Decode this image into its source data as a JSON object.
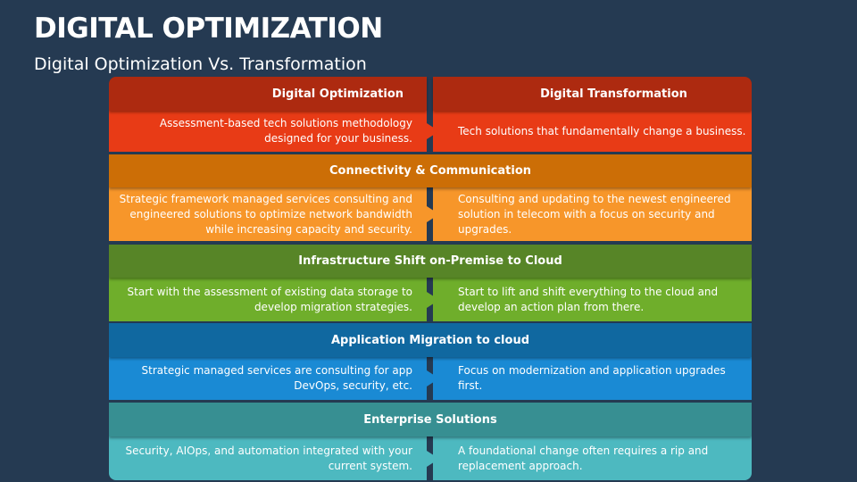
{
  "title": "DIGITAL OPTIMIZATION",
  "subtitle": "Digital Optimization Vs. Transformation",
  "columns": {
    "left": "Digital Optimization",
    "right": "Digital Transformation"
  },
  "rows": [
    {
      "heading": "",
      "left": "Assessment-based tech solutions methodology designed for your business.",
      "right": "Tech solutions that fundamentally change a business.",
      "header_color": "#ad2a10",
      "body_color": "#e83b16"
    },
    {
      "heading": "Connectivity & Communication",
      "left": "Strategic framework managed services consulting and engineered solutions to optimize network bandwidth while increasing capacity and security.",
      "right": "Consulting and updating to the newest engineered solution in telecom with a focus on security and upgrades.",
      "header_color": "#cc6e06",
      "body_color": "#f7962a"
    },
    {
      "heading": "Infrastructure Shift on-Premise to Cloud",
      "left": "Start with the assessment of existing data storage to develop migration strategies.",
      "right": "Start to lift and shift everything to the cloud and develop an action plan from there.",
      "header_color": "#578527",
      "body_color": "#6fae2b"
    },
    {
      "heading": "Application Migration to cloud",
      "left": "Strategic managed services are consulting for app DevOps, security, etc.",
      "right": "Focus on modernization and application upgrades first.",
      "header_color": "#1068a0",
      "body_color": "#1a8ad4"
    },
    {
      "heading": "Enterprise Solutions",
      "left": "Security, AIOps, and automation integrated with your current system.",
      "right": "A foundational change often requires a rip and replacement approach.",
      "header_color": "#378f92",
      "body_color": "#4db9c0"
    }
  ]
}
